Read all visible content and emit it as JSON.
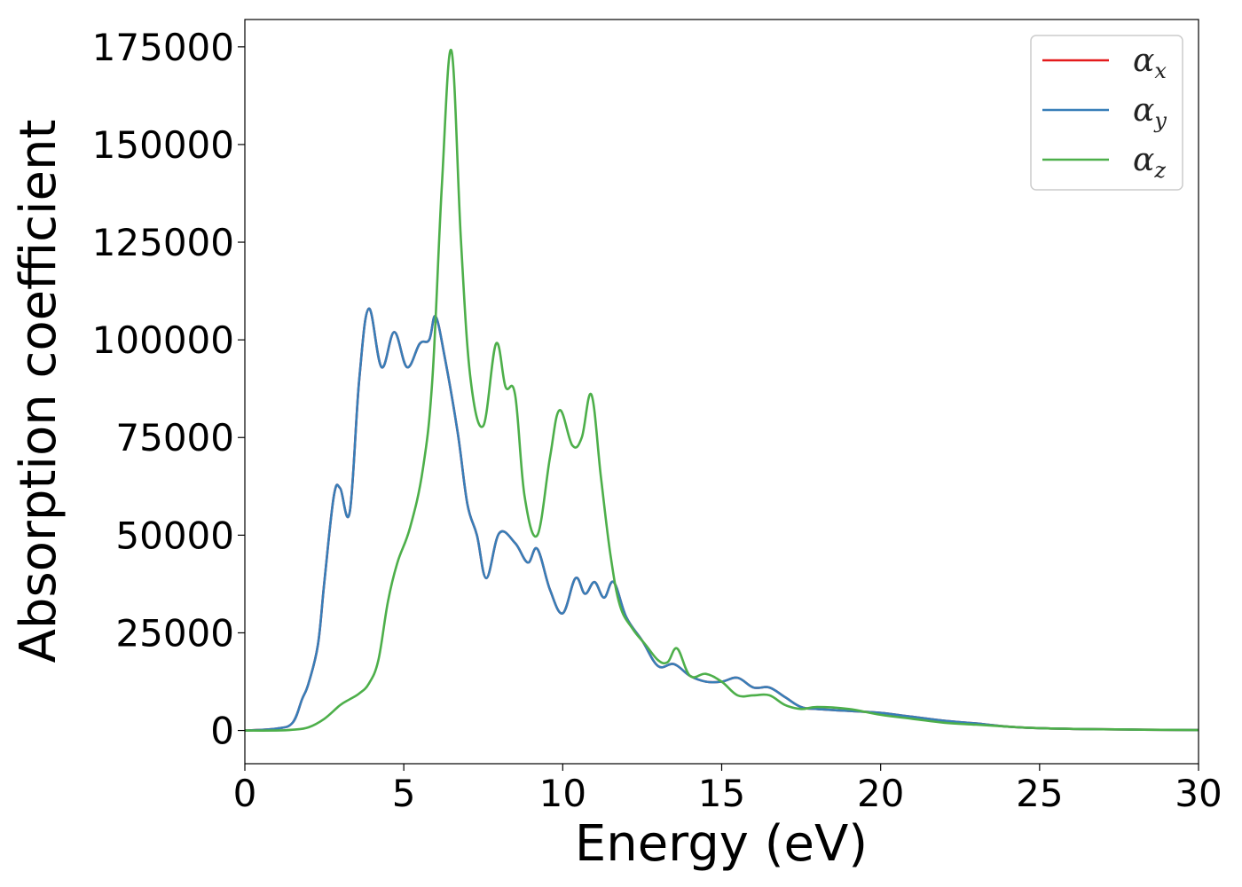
{
  "chart_data": {
    "type": "line",
    "title": "",
    "xlabel": "Energy (eV)",
    "ylabel": "Absorption coefficient",
    "xlim": [
      0,
      30
    ],
    "ylim": [
      -8500,
      182000
    ],
    "xticks": [
      0,
      5,
      10,
      15,
      20,
      25,
      30
    ],
    "yticks": [
      0,
      25000,
      50000,
      75000,
      100000,
      125000,
      150000,
      175000
    ],
    "grid": false,
    "legend_position": "top-right",
    "series": [
      {
        "name": "αx",
        "symbol": "α",
        "subscript": "x",
        "color": "#e41a1c",
        "x": [
          0,
          1,
          1.5,
          1.8,
          2.0,
          2.3,
          2.5,
          2.8,
          3.0,
          3.3,
          3.6,
          3.9,
          4.3,
          4.7,
          5.1,
          5.5,
          5.8,
          6.0,
          6.3,
          6.7,
          7.0,
          7.3,
          7.6,
          8.0,
          8.5,
          8.9,
          9.2,
          9.6,
          10.0,
          10.4,
          10.7,
          11.0,
          11.3,
          11.6,
          12.0,
          12.5,
          13.0,
          13.5,
          14.0,
          14.5,
          15.0,
          15.5,
          16.0,
          16.5,
          17.0,
          17.5,
          18.0,
          19.0,
          20.0,
          21.0,
          22.0,
          23.0,
          24.0,
          25.0,
          27.0,
          30.0
        ],
        "y": [
          0,
          500,
          2000,
          8000,
          12000,
          22000,
          38000,
          60000,
          62000,
          56000,
          90000,
          108000,
          93000,
          102000,
          93000,
          99000,
          100000,
          106000,
          95000,
          76000,
          58000,
          50000,
          39000,
          50500,
          48000,
          43000,
          46500,
          36000,
          30000,
          39000,
          35000,
          38000,
          34000,
          38000,
          29000,
          23000,
          16500,
          17000,
          14000,
          12500,
          12500,
          13500,
          11000,
          11000,
          8500,
          6000,
          5500,
          5000,
          4500,
          3500,
          2500,
          1800,
          1000,
          600,
          300,
          100
        ]
      },
      {
        "name": "αy",
        "symbol": "α",
        "subscript": "y",
        "color": "#377eb8",
        "x": [
          0,
          1,
          1.5,
          1.8,
          2.0,
          2.3,
          2.5,
          2.8,
          3.0,
          3.3,
          3.6,
          3.9,
          4.3,
          4.7,
          5.1,
          5.5,
          5.8,
          6.0,
          6.3,
          6.7,
          7.0,
          7.3,
          7.6,
          8.0,
          8.5,
          8.9,
          9.2,
          9.6,
          10.0,
          10.4,
          10.7,
          11.0,
          11.3,
          11.6,
          12.0,
          12.5,
          13.0,
          13.5,
          14.0,
          14.5,
          15.0,
          15.5,
          16.0,
          16.5,
          17.0,
          17.5,
          18.0,
          19.0,
          20.0,
          21.0,
          22.0,
          23.0,
          24.0,
          25.0,
          27.0,
          30.0
        ],
        "y": [
          0,
          500,
          2000,
          8000,
          12000,
          22000,
          38000,
          60000,
          62000,
          56000,
          90000,
          108000,
          93000,
          102000,
          93000,
          99000,
          100000,
          106000,
          95000,
          76000,
          58000,
          50000,
          39000,
          50500,
          48000,
          43000,
          46500,
          36000,
          30000,
          39000,
          35000,
          38000,
          34000,
          38000,
          29000,
          23000,
          16500,
          17000,
          14000,
          12500,
          12500,
          13500,
          11000,
          11000,
          8500,
          6000,
          5500,
          5000,
          4500,
          3500,
          2500,
          1800,
          1000,
          600,
          300,
          100
        ]
      },
      {
        "name": "αz",
        "symbol": "α",
        "subscript": "z",
        "color": "#4daf4a",
        "x": [
          0,
          1,
          1.5,
          2.0,
          2.5,
          3.0,
          3.3,
          3.6,
          3.9,
          4.2,
          4.5,
          4.8,
          5.2,
          5.6,
          5.9,
          6.2,
          6.5,
          6.8,
          7.1,
          7.5,
          7.9,
          8.2,
          8.5,
          8.8,
          9.2,
          9.6,
          9.9,
          10.3,
          10.6,
          10.9,
          11.2,
          11.5,
          11.8,
          12.2,
          12.6,
          13.0,
          13.3,
          13.6,
          14.0,
          14.5,
          15.0,
          15.5,
          16.0,
          16.5,
          17.0,
          17.5,
          18.0,
          19.0,
          20.0,
          21.0,
          22.0,
          23.0,
          24.0,
          25.0,
          27.0,
          30.0
        ],
        "y": [
          0,
          0,
          200,
          800,
          3000,
          6500,
          8000,
          9500,
          12000,
          18000,
          33000,
          43000,
          52000,
          67000,
          90000,
          140000,
          174000,
          125000,
          90000,
          78000,
          99000,
          88000,
          86000,
          60000,
          50000,
          70000,
          82000,
          73000,
          75000,
          86000,
          65000,
          45000,
          32000,
          26000,
          22000,
          18000,
          17500,
          21000,
          14000,
          14500,
          12500,
          9000,
          9000,
          9000,
          6500,
          5500,
          6000,
          5500,
          4000,
          3000,
          2000,
          1500,
          1000,
          600,
          300,
          100
        ]
      }
    ]
  }
}
